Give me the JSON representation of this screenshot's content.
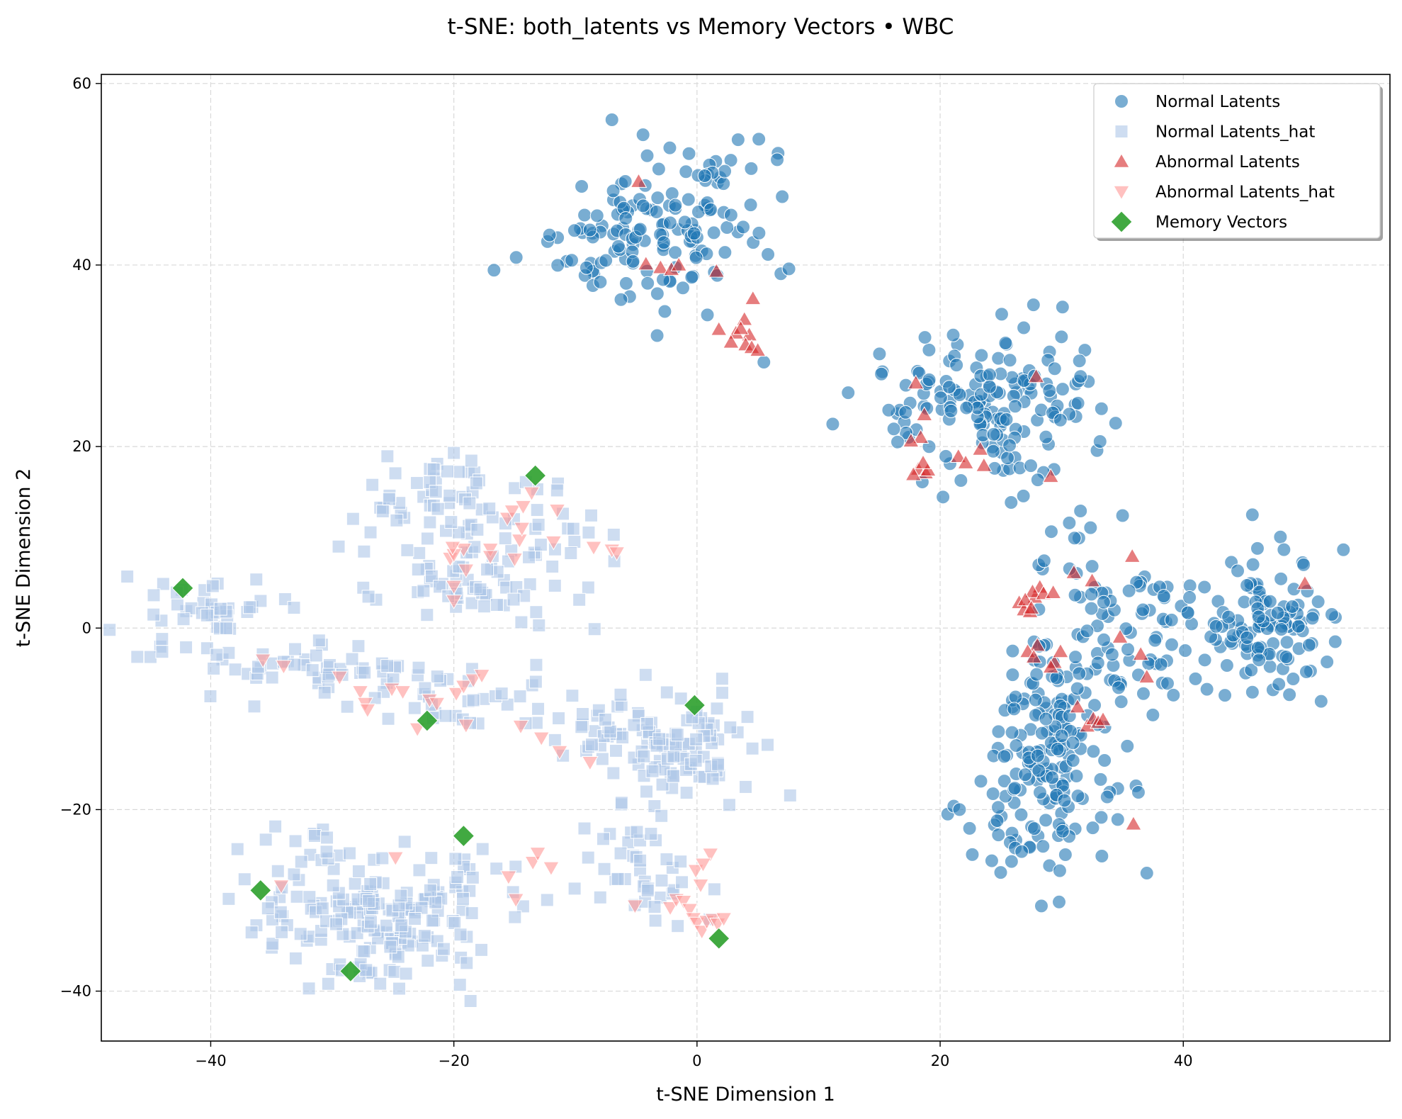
{
  "chart_data": {
    "type": "scatter",
    "title": "t-SNE: both_latents vs Memory Vectors • WBC",
    "xlabel": "t-SNE Dimension 1",
    "ylabel": "t-SNE Dimension 2",
    "xlim": [
      -49,
      57
    ],
    "ylim": [
      -45.5,
      61
    ],
    "xticks": [
      -40,
      -20,
      0,
      20,
      40
    ],
    "yticks": [
      -40,
      -20,
      0,
      20,
      40,
      60
    ],
    "grid": true,
    "legend_position": "top-right",
    "series": [
      {
        "name": "Normal Latents",
        "marker": "circle",
        "color": "#1f77b4",
        "clusters": [
          {
            "cx": -3,
            "cy": 44,
            "sx": 3.6,
            "sy": 5.5,
            "rot": -50,
            "n": 150
          },
          {
            "cx": 24,
            "cy": 25,
            "sx": 4.5,
            "sy": 4.2,
            "rot": 0,
            "n": 160
          },
          {
            "cx": 29,
            "cy": -14,
            "sx": 2.8,
            "sy": 7.0,
            "rot": -8,
            "n": 190
          },
          {
            "cx": 47.5,
            "cy": 1,
            "sx": 2.5,
            "sy": 4.0,
            "rot": 0,
            "n": 110
          },
          {
            "cx": 38.5,
            "cy": 2.5,
            "sx": 4.5,
            "sy": 1.5,
            "rot": -6,
            "n": 45
          },
          {
            "cx": 37,
            "cy": -4,
            "sx": 2.2,
            "sy": 1.6,
            "rot": 0,
            "n": 25
          },
          {
            "cx": 30.5,
            "cy": 9,
            "sx": 0.9,
            "sy": 2.2,
            "rot": 0,
            "n": 10
          }
        ],
        "points": [
          [
            2.8,
            45.5
          ],
          [
            -7,
            56
          ],
          [
            5.5,
            29.3
          ],
          [
            16.5,
            20.5
          ],
          [
            52.5,
            -1.5
          ],
          [
            37,
            -27
          ],
          [
            -7.5,
            40.5
          ]
        ]
      },
      {
        "name": "Normal Latents_hat",
        "marker": "square",
        "color": "#aec7e8",
        "clusters": [
          {
            "cx": -22,
            "cy": 14,
            "sx": 3.5,
            "sy": 2.6,
            "rot": 0,
            "n": 55
          },
          {
            "cx": -19,
            "cy": 5,
            "sx": 4.5,
            "sy": 2.6,
            "rot": 0,
            "n": 60
          },
          {
            "cx": -12.5,
            "cy": 10.5,
            "sx": 2.2,
            "sy": 2.0,
            "rot": 0,
            "n": 20
          },
          {
            "cx": -39,
            "cy": 2.5,
            "sx": 2.7,
            "sy": 1.6,
            "rot": 0,
            "n": 35
          },
          {
            "cx": -31,
            "cy": -5,
            "sx": 7.0,
            "sy": 1.6,
            "rot": -8,
            "n": 70
          },
          {
            "cx": -20,
            "cy": -9,
            "sx": 3.5,
            "sy": 1.2,
            "rot": 0,
            "n": 20
          },
          {
            "cx": -2,
            "cy": -13,
            "sx": 3.5,
            "sy": 3.0,
            "rot": 0,
            "n": 100
          },
          {
            "cx": -9,
            "cy": -11,
            "sx": 3.5,
            "sy": 1.0,
            "rot": 0,
            "n": 15
          },
          {
            "cx": -5.5,
            "cy": -26,
            "sx": 1.8,
            "sy": 3.0,
            "rot": 0,
            "n": 30
          },
          {
            "cx": -28,
            "cy": -33,
            "sx": 5.0,
            "sy": 3.2,
            "rot": -30,
            "n": 130
          },
          {
            "cx": -21,
            "cy": -30,
            "sx": 3.5,
            "sy": 3.0,
            "rot": 0,
            "n": 60
          },
          {
            "cx": -31,
            "cy": -24,
            "sx": 1.6,
            "sy": 1.0,
            "rot": 0,
            "n": 8
          },
          {
            "cx": -2.5,
            "cy": -30,
            "sx": 1.6,
            "sy": 2.0,
            "rot": 0,
            "n": 12
          }
        ],
        "points": [
          [
            -13,
            0.3
          ],
          [
            -44,
            -1.2
          ],
          [
            -19.5,
            -39.3
          ],
          [
            -16.5,
            -26.5
          ],
          [
            -18.5,
            -4.5
          ],
          [
            -20,
            19.3
          ],
          [
            4,
            -17.5
          ]
        ]
      },
      {
        "name": "Abnormal Latents",
        "marker": "triangle-up",
        "color": "#d62728",
        "points": [
          [
            -4.8,
            49.2
          ],
          [
            -4.2,
            40.1
          ],
          [
            -3.0,
            39.7
          ],
          [
            -2.1,
            39.5
          ],
          [
            -1.5,
            40.0
          ],
          [
            1.6,
            39.3
          ],
          [
            3.9,
            34.0
          ],
          [
            4.3,
            32.3
          ],
          [
            3.2,
            32.5
          ],
          [
            2.8,
            31.5
          ],
          [
            4.0,
            31.2
          ],
          [
            4.5,
            30.9
          ],
          [
            3.6,
            33.0
          ],
          [
            5.0,
            30.6
          ],
          [
            4.6,
            36.3
          ],
          [
            1.8,
            32.9
          ],
          [
            18.0,
            27.0
          ],
          [
            18.4,
            21.0
          ],
          [
            17.6,
            20.6
          ],
          [
            18.2,
            17.5
          ],
          [
            18.8,
            17.1
          ],
          [
            17.8,
            16.9
          ],
          [
            19.0,
            17.4
          ],
          [
            18.6,
            18.2
          ],
          [
            21.5,
            18.9
          ],
          [
            22.1,
            18.2
          ],
          [
            23.6,
            17.9
          ],
          [
            23.3,
            19.7
          ],
          [
            27.9,
            27.7
          ],
          [
            29.1,
            16.7
          ],
          [
            18.7,
            23.5
          ],
          [
            26.5,
            2.8
          ],
          [
            26.9,
            2.0
          ],
          [
            27.4,
            1.8
          ],
          [
            27.8,
            3.4
          ],
          [
            28.2,
            4.5
          ],
          [
            27.6,
            4.0
          ],
          [
            28.5,
            3.8
          ],
          [
            29.3,
            3.9
          ],
          [
            27.0,
            3.1
          ],
          [
            31.0,
            6.1
          ],
          [
            32.5,
            5.2
          ],
          [
            35.8,
            7.9
          ],
          [
            28.0,
            -1.9
          ],
          [
            27.2,
            -2.6
          ],
          [
            27.7,
            -3.2
          ],
          [
            29.4,
            -3.8
          ],
          [
            29.9,
            -2.6
          ],
          [
            34.8,
            -1.0
          ],
          [
            36.5,
            -2.9
          ],
          [
            37.0,
            -5.4
          ],
          [
            31.3,
            -8.7
          ],
          [
            32.1,
            -10.8
          ],
          [
            32.6,
            -10.0
          ],
          [
            33.0,
            -10.4
          ],
          [
            33.4,
            -10.1
          ],
          [
            35.9,
            -21.6
          ],
          [
            50.0,
            4.9
          ],
          [
            27.5,
            2.2
          ],
          [
            29.1,
            -4.3
          ]
        ]
      },
      {
        "name": "Abnormal Latents_hat",
        "marker": "triangle-down",
        "color": "#ff9896",
        "points": [
          [
            -20.3,
            7.7
          ],
          [
            -19.2,
            8.7
          ],
          [
            -20.0,
            4.6
          ],
          [
            -20.0,
            3.0
          ],
          [
            -17.0,
            8.7
          ],
          [
            -17.0,
            7.9
          ],
          [
            -15.0,
            7.6
          ],
          [
            -14.6,
            9.7
          ],
          [
            -14.4,
            11.0
          ],
          [
            -15.6,
            12.1
          ],
          [
            -15.2,
            12.9
          ],
          [
            -14.3,
            13.4
          ],
          [
            -13.6,
            14.9
          ],
          [
            -11.8,
            9.5
          ],
          [
            -11.5,
            13.0
          ],
          [
            -8.5,
            8.9
          ],
          [
            -7.0,
            8.6
          ],
          [
            -6.6,
            8.3
          ],
          [
            -20.0,
            8.1
          ],
          [
            -35.7,
            -3.5
          ],
          [
            -34.0,
            -4.2
          ],
          [
            -29.4,
            -5.4
          ],
          [
            -27.7,
            -7.0
          ],
          [
            -27.3,
            -8.3
          ],
          [
            -27.1,
            -9.0
          ],
          [
            -25.1,
            -6.7
          ],
          [
            -24.2,
            -7.0
          ],
          [
            -22.0,
            -7.9
          ],
          [
            -21.4,
            -8.3
          ],
          [
            -19.8,
            -7.2
          ],
          [
            -19.2,
            -6.4
          ],
          [
            -18.4,
            -5.7
          ],
          [
            -17.7,
            -5.2
          ],
          [
            -19.0,
            -10.7
          ],
          [
            -23.0,
            -11.1
          ],
          [
            -12.8,
            -12.1
          ],
          [
            -11.3,
            -13.6
          ],
          [
            -8.8,
            -14.8
          ],
          [
            -14.5,
            -10.8
          ],
          [
            -24.8,
            -25.3
          ],
          [
            -34.2,
            -28.4
          ],
          [
            -15.5,
            -27.4
          ],
          [
            -14.9,
            -29.9
          ],
          [
            -13.5,
            -25.8
          ],
          [
            -13.1,
            -24.8
          ],
          [
            -12.0,
            -26.4
          ],
          [
            -5.1,
            -30.6
          ],
          [
            -2.2,
            -30.8
          ],
          [
            -1.7,
            -29.9
          ],
          [
            -1.1,
            -30.1
          ],
          [
            -0.6,
            -31.0
          ],
          [
            -0.3,
            -32.0
          ],
          [
            0.0,
            -32.5
          ],
          [
            0.4,
            -33.4
          ],
          [
            0.8,
            -32.3
          ],
          [
            1.3,
            -32.1
          ],
          [
            1.7,
            -32.6
          ],
          [
            2.2,
            -32.0
          ],
          [
            0.3,
            -28.3
          ],
          [
            1.1,
            -24.9
          ],
          [
            -0.1,
            -26.7
          ],
          [
            0.5,
            -26.0
          ],
          [
            -20.1,
            8.9
          ],
          [
            -19.0,
            6.4
          ]
        ]
      },
      {
        "name": "Memory Vectors",
        "marker": "diamond",
        "color": "#2ca02c",
        "points": [
          [
            -42.3,
            4.4
          ],
          [
            -13.3,
            16.8
          ],
          [
            -22.2,
            -10.2
          ],
          [
            -0.2,
            -8.5
          ],
          [
            -19.2,
            -22.9
          ],
          [
            -35.9,
            -28.9
          ],
          [
            -28.5,
            -37.8
          ],
          [
            1.8,
            -34.2
          ]
        ]
      }
    ]
  }
}
